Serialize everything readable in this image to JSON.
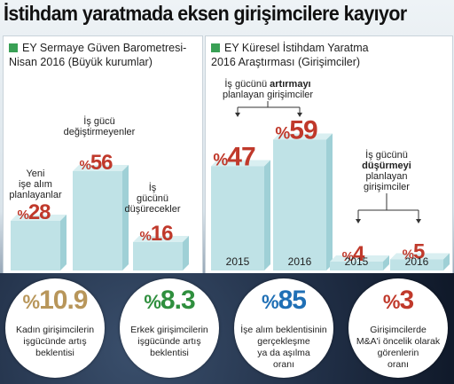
{
  "title": "İstihdam yaratmada eksen girişimcilere kayıyor",
  "colors": {
    "bar_face": "#bfe2e6",
    "bar_top": "#d9eff1",
    "bar_side": "#9fd0d6",
    "percent_red": "#c0392b",
    "green_square": "#39a055",
    "green_value": "#2f8f3e",
    "blue_value": "#1f6fb5",
    "tan_value": "#b8965a"
  },
  "left_panel": {
    "header_line1": "EY Sermaye Güven Barometresi-",
    "header_line2": "Nisan 2016 (Büyük kurumlar)"
  },
  "right_panel": {
    "header_line1": "EY Küresel İstihdam Yaratma",
    "header_line2": "2016 Araştırması (Girişimciler)"
  },
  "chart_data": [
    {
      "type": "bar",
      "categories": [
        "Yeni işe alım planlayanlar",
        "İş gücü değiştirmeyenler",
        "İş gücünü düşürecekler"
      ],
      "values": [
        28,
        56,
        16
      ],
      "percent_sign": "%",
      "labels": [
        [
          "Yeni",
          "işe alım",
          "planlayanlar"
        ],
        [
          "İş gücü",
          "değiştirmeyenler"
        ],
        [
          "İş",
          "gücünü",
          "düşürecekler"
        ]
      ],
      "ylim": [
        0,
        60
      ]
    },
    {
      "type": "bar",
      "groups": [
        {
          "label_line1": "İş gücünü",
          "label_bold": "artırmayı",
          "label_line2": "planlayan girişimciler",
          "categories": [
            "2015",
            "2016"
          ],
          "values": [
            47,
            59
          ]
        },
        {
          "label_line1": "İş gücünü",
          "label_bold": "düşürmeyi",
          "label_line2": "planlayan",
          "label_line3": "girişimciler",
          "categories": [
            "2015",
            "2016"
          ],
          "values": [
            4,
            5
          ]
        }
      ],
      "percent_sign": "%",
      "ylim": [
        0,
        60
      ]
    }
  ],
  "circles": [
    {
      "value": "10.9",
      "color": "#b8965a",
      "label": [
        "Kadın girişimcilerin",
        "işgücünde artış",
        "beklentisi"
      ]
    },
    {
      "value": "8.3",
      "color": "#2f8f3e",
      "label": [
        "Erkek girişimcilerin",
        "işgücünde artış",
        "beklentisi"
      ]
    },
    {
      "value": "85",
      "color": "#1f6fb5",
      "label": [
        "İşe alım beklentisinin",
        "gerçekleşme",
        "ya da aşılma",
        "oranı"
      ]
    },
    {
      "value": "3",
      "color": "#c0392b",
      "label": [
        "Girişimcilerde",
        "M&A'i öncelik olarak",
        "görenlerin",
        "oranı"
      ]
    }
  ]
}
